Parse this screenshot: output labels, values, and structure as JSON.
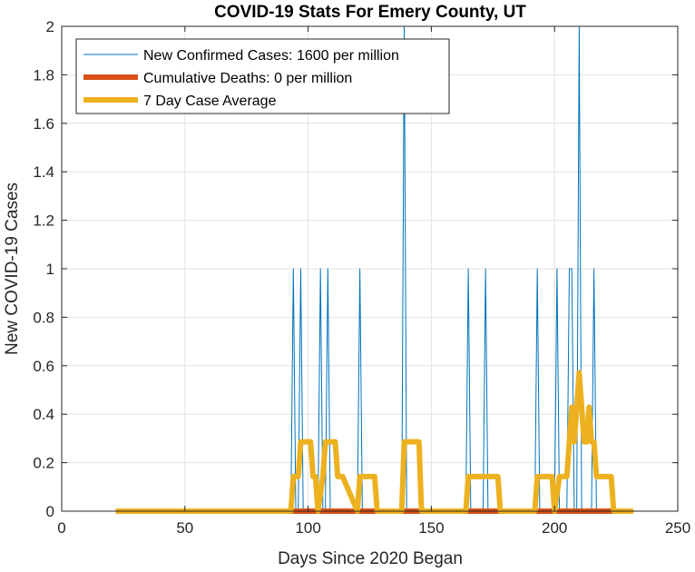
{
  "chart_data": {
    "type": "line",
    "title": "COVID-19 Stats For Emery County, UT",
    "xlabel": "Days Since 2020 Began",
    "ylabel": "New COVID-19 Cases",
    "xlim": [
      0,
      250
    ],
    "ylim": [
      0,
      2
    ],
    "xticks": [
      0,
      50,
      100,
      150,
      200,
      250
    ],
    "xtick_labels": [
      "0",
      "50",
      "100",
      "150",
      "200",
      "250"
    ],
    "yticks": [
      0,
      0.2,
      0.4,
      0.6,
      0.8,
      1,
      1.2,
      1.4,
      1.6,
      1.8,
      2
    ],
    "ytick_labels": [
      "0",
      "0.2",
      "0.4",
      "0.6",
      "0.8",
      "1",
      "1.2",
      "1.4",
      "1.6",
      "1.8",
      "2"
    ],
    "grid": true,
    "legend_location": "top-left",
    "series": [
      {
        "name": "New Confirmed Cases: 1600 per million",
        "color": "#0072bd",
        "line_width": "thin",
        "x": [
          22,
          93,
          94,
          95,
          96,
          97,
          98,
          104,
          105,
          106,
          107,
          108,
          109,
          120,
          121,
          122,
          138,
          139,
          140,
          164,
          165,
          166,
          171,
          172,
          173,
          192,
          193,
          194,
          200,
          201,
          202,
          205,
          206,
          207,
          208,
          209,
          210,
          211,
          212,
          215,
          216,
          217,
          232
        ],
        "y": [
          0,
          0,
          1,
          0,
          0,
          1,
          0,
          0,
          1,
          0,
          0,
          1,
          0,
          0,
          1,
          0,
          0,
          2,
          0,
          0,
          1,
          0,
          0,
          1,
          0,
          0,
          1,
          0,
          0,
          1,
          0,
          0,
          1,
          1,
          0,
          0,
          2,
          0,
          0,
          0,
          1,
          0,
          0
        ]
      },
      {
        "name": "Cumulative Deaths: 0 per million",
        "color": "#d95319",
        "line_width": "thick",
        "x": [
          22,
          232
        ],
        "y": [
          0,
          0
        ]
      },
      {
        "name": "7 Day Case Average",
        "color": "#edb120",
        "line_width": "thick",
        "x": [
          22,
          93,
          94,
          96,
          97,
          101,
          102,
          103,
          104,
          106,
          107,
          111,
          112,
          114,
          120,
          121,
          127,
          128,
          138,
          139,
          145,
          146,
          164,
          165,
          177,
          178,
          192,
          193,
          199,
          200,
          202,
          205,
          206,
          207,
          208,
          209,
          210,
          211,
          212,
          213,
          214,
          215,
          216,
          217,
          218,
          223,
          224,
          232
        ],
        "y": [
          0,
          0,
          0.143,
          0.143,
          0.286,
          0.286,
          0.143,
          0.143,
          0,
          0.143,
          0.286,
          0.286,
          0.143,
          0.143,
          0,
          0.143,
          0.143,
          0,
          0,
          0.286,
          0.286,
          0,
          0,
          0.143,
          0.143,
          0,
          0,
          0.143,
          0.143,
          0,
          0.143,
          0.143,
          0.286,
          0.429,
          0.286,
          0.429,
          0.571,
          0.429,
          0.286,
          0.286,
          0.429,
          0.286,
          0.286,
          0.143,
          0.143,
          0.143,
          0,
          0
        ]
      }
    ]
  }
}
